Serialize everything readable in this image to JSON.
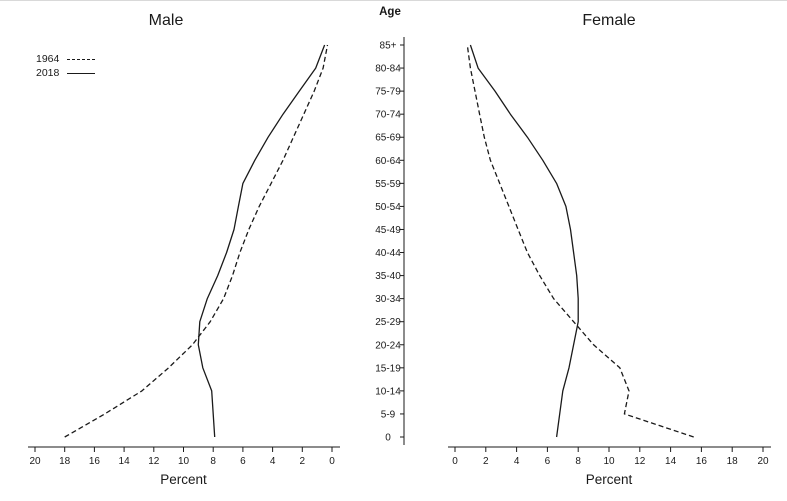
{
  "page": {
    "background": "#ffffff",
    "ink_color": "#1a1a1a",
    "top_border_color": "#d9d9d9"
  },
  "chart_data": {
    "type": "line",
    "variant": "population-pyramid-percent-distribution",
    "age_order": "bottom_to_top",
    "grid": "off",
    "legend_position": "top-left",
    "age_axis": {
      "title": "Age",
      "categories_bottom_to_top": [
        "0",
        "5-9",
        "10-14",
        "15-19",
        "20-24",
        "25-29",
        "30-34",
        "35-40",
        "40-44",
        "45-49",
        "50-54",
        "55-59",
        "60-64",
        "65-69",
        "70-74",
        "75-79",
        "80-84",
        "85+"
      ]
    },
    "legend": [
      {
        "label": "1964",
        "style": "dashed"
      },
      {
        "label": "2018",
        "style": "solid"
      }
    ],
    "panels": [
      {
        "title": "Male",
        "xlabel": "Percent",
        "xlim": [
          0,
          20
        ],
        "x_direction": "reversed",
        "x_ticks": [
          20,
          18,
          16,
          14,
          12,
          10,
          8,
          6,
          4,
          2,
          0
        ],
        "series": [
          {
            "name": "1964",
            "style": "dashed",
            "values": [
              18.0,
              15.3,
              12.8,
              11.0,
              9.4,
              8.2,
              7.3,
              6.7,
              6.2,
              5.6,
              4.9,
              4.1,
              3.3,
              2.6,
              1.9,
              1.2,
              0.6,
              0.3
            ]
          },
          {
            "name": "2018",
            "style": "solid",
            "values": [
              7.9,
              8.0,
              8.1,
              8.7,
              9.0,
              8.9,
              8.4,
              7.7,
              7.1,
              6.6,
              6.3,
              6.0,
              5.2,
              4.3,
              3.3,
              2.2,
              1.1,
              0.5
            ]
          }
        ]
      },
      {
        "title": "Female",
        "xlabel": "Percent",
        "xlim": [
          0,
          20
        ],
        "x_direction": "normal",
        "x_ticks": [
          0,
          2,
          4,
          6,
          8,
          10,
          12,
          14,
          16,
          18,
          20
        ],
        "series": [
          {
            "name": "1964",
            "style": "dashed",
            "values": [
              15.5,
              11.0,
              11.3,
              10.7,
              9.0,
              7.7,
              6.4,
              5.5,
              4.7,
              4.1,
              3.5,
              2.9,
              2.3,
              1.9,
              1.6,
              1.3,
              1.0,
              0.8
            ]
          },
          {
            "name": "2018",
            "style": "solid",
            "values": [
              6.6,
              6.8,
              7.0,
              7.4,
              7.7,
              8.0,
              8.0,
              7.9,
              7.7,
              7.5,
              7.2,
              6.6,
              5.7,
              4.7,
              3.6,
              2.6,
              1.5,
              1.0
            ]
          }
        ]
      }
    ]
  }
}
